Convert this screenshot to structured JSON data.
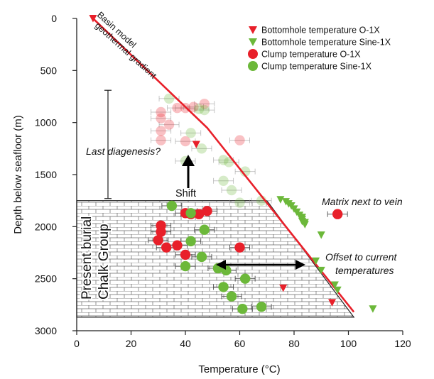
{
  "chart_data": {
    "type": "scatter",
    "xlabel": "Temperature (°C)",
    "ylabel": "Depth below seafloor (m)",
    "xlim": [
      0,
      120
    ],
    "ylim": [
      3000,
      0
    ],
    "xticks": [
      0,
      20,
      40,
      60,
      80,
      100,
      120
    ],
    "yticks": [
      0,
      500,
      1000,
      1500,
      2000,
      2500,
      3000
    ],
    "grid": false,
    "legend_position": "top-right",
    "colors": {
      "red": "#e8202a",
      "green": "#6cb83a",
      "gradient_line": "#e8202a",
      "chalk_hatch": "#555555"
    },
    "legend": [
      {
        "label": "Bottomhole temperature O-1X",
        "marker": "triangle",
        "color": "#e8202a"
      },
      {
        "label": "Bottomhole temperature Sine-1X",
        "marker": "triangle",
        "color": "#6cb83a"
      },
      {
        "label": "Clump temperature O-1X",
        "marker": "circle",
        "color": "#e8202a"
      },
      {
        "label": "Clump temperature Sine-1X",
        "marker": "circle",
        "color": "#6cb83a"
      }
    ],
    "geothermal_line": {
      "label_line1": "Basin model",
      "label_line2": "geothermal gradient",
      "points": [
        [
          6,
          0
        ],
        [
          48,
          1050
        ],
        [
          102,
          2820
        ]
      ]
    },
    "chalk_group": {
      "label_line1": "Present burial",
      "label_line2": "Chalk Group",
      "top_depth": 1750,
      "bottom_depth": 2870,
      "left_temp": 0,
      "right_temp_top": 70,
      "right_temp_bottom": 102
    },
    "annotations": {
      "last_diagenesis": "Last diagenesis?",
      "shift": "Shift",
      "matrix_next_to_vein": "Matrix next to vein",
      "offset_line1": "Offset to current",
      "offset_line2": "temperatures"
    },
    "last_diagenesis_range": [
      690,
      1730
    ],
    "series": [
      {
        "name": "Bottomhole temperature O-1X",
        "marker": "triangle",
        "color": "red",
        "points": [
          [
            6,
            0
          ],
          [
            44,
            1210
          ],
          [
            76,
            2590
          ],
          [
            94,
            2730
          ]
        ]
      },
      {
        "name": "Bottomhole temperature Sine-1X",
        "marker": "triangle",
        "color": "green",
        "points": [
          [
            75,
            1740
          ],
          [
            77,
            1760
          ],
          [
            78,
            1780
          ],
          [
            79,
            1800
          ],
          [
            80,
            1830
          ],
          [
            81,
            1860
          ],
          [
            82,
            1890
          ],
          [
            83,
            1910
          ],
          [
            83,
            1930
          ],
          [
            83,
            1950
          ],
          [
            84,
            1960
          ],
          [
            84,
            1980
          ],
          [
            90,
            2080
          ],
          [
            88,
            2330
          ],
          [
            90,
            2420
          ],
          [
            95,
            2560
          ],
          [
            96,
            2610
          ],
          [
            109,
            2790
          ]
        ]
      },
      {
        "name": "Clump temperature O-1X",
        "marker": "circle",
        "color": "red",
        "points": [
          [
            40,
            1870
          ],
          [
            42,
            1880
          ],
          [
            45,
            1880
          ],
          [
            48,
            1850
          ],
          [
            31,
            1990
          ],
          [
            31,
            2050
          ],
          [
            30,
            2130
          ],
          [
            33,
            2200
          ],
          [
            37,
            2180
          ],
          [
            40,
            2270
          ],
          [
            60,
            2200
          ],
          [
            96,
            1880
          ]
        ]
      },
      {
        "name": "Clump temperature Sine-1X",
        "marker": "circle",
        "color": "green",
        "points": [
          [
            35,
            1800
          ],
          [
            42,
            1870
          ],
          [
            42,
            2140
          ],
          [
            47,
            2030
          ],
          [
            46,
            2290
          ],
          [
            40,
            2380
          ],
          [
            52,
            2400
          ],
          [
            55,
            2420
          ],
          [
            62,
            2500
          ],
          [
            54,
            2580
          ],
          [
            57,
            2670
          ],
          [
            61,
            2790
          ],
          [
            68,
            2770
          ]
        ]
      },
      {
        "name": "Shifted clump temperature O-1X",
        "marker": "circle",
        "color": "red",
        "faded": true,
        "points": [
          [
            31,
            900
          ],
          [
            31,
            960
          ],
          [
            31,
            1080
          ],
          [
            31,
            1170
          ],
          [
            34,
            1020
          ],
          [
            37,
            860
          ],
          [
            40,
            860
          ],
          [
            43,
            850
          ],
          [
            47,
            820
          ],
          [
            40,
            1180
          ],
          [
            60,
            1170
          ]
        ]
      },
      {
        "name": "Shifted clump temperature Sine-1X",
        "marker": "circle",
        "color": "green",
        "faded": true,
        "points": [
          [
            34,
            770
          ],
          [
            45,
            870
          ],
          [
            47,
            880
          ],
          [
            42,
            1100
          ],
          [
            46,
            1250
          ],
          [
            40,
            1370
          ],
          [
            54,
            1360
          ],
          [
            56,
            1380
          ],
          [
            62,
            1470
          ],
          [
            54,
            1560
          ],
          [
            57,
            1650
          ],
          [
            60,
            1770
          ],
          [
            68,
            1750
          ]
        ]
      }
    ]
  }
}
